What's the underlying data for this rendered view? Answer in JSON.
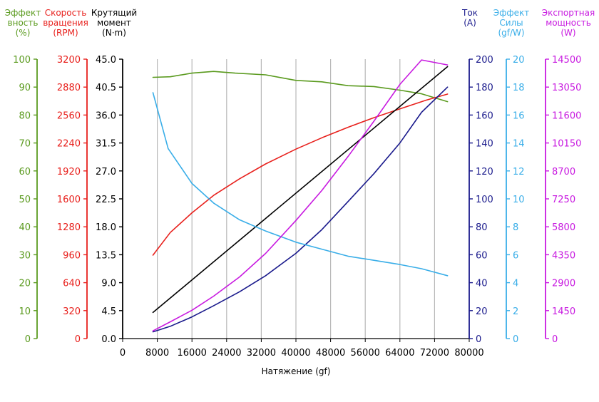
{
  "chart_data": {
    "type": "line",
    "xlabel": "Натяжение (gf)",
    "x_ticks": [
      "0",
      "8000",
      "16000",
      "24000",
      "32000",
      "40000",
      "48000",
      "56000",
      "64000",
      "72000",
      "80000"
    ],
    "xlim": [
      0,
      80000
    ],
    "grid": "vertical",
    "axes": [
      {
        "id": "eff",
        "title": [
          "Эффект",
          "вность",
          "(%)"
        ],
        "color": "#5a9a1e",
        "side": "left",
        "lim": [
          0,
          100
        ],
        "ticks": [
          "0",
          "10",
          "20",
          "30",
          "40",
          "50",
          "60",
          "70",
          "80",
          "90",
          "100"
        ]
      },
      {
        "id": "rpm",
        "title": [
          "Скорость",
          "вращения",
          "(RPM)"
        ],
        "color": "#e8201c",
        "side": "left",
        "lim": [
          0,
          3200
        ],
        "ticks": [
          "0",
          "320",
          "640",
          "960",
          "1280",
          "1600",
          "1920",
          "2240",
          "2560",
          "2880",
          "3200"
        ]
      },
      {
        "id": "torque",
        "title": [
          "Крутящий",
          "момент",
          "(N·m)"
        ],
        "color": "#000000",
        "side": "left",
        "lim": [
          0,
          45
        ],
        "ticks": [
          "0.0",
          "4.5",
          "9.0",
          "13.5",
          "18.0",
          "22.5",
          "27.0",
          "31.5",
          "36.0",
          "40.5",
          "45.0"
        ]
      },
      {
        "id": "current",
        "title": [
          "Ток",
          "(A)"
        ],
        "color": "#1a1a8c",
        "side": "right",
        "lim": [
          0,
          200
        ],
        "ticks": [
          "0",
          "20",
          "40",
          "60",
          "80",
          "100",
          "120",
          "140",
          "160",
          "180",
          "200"
        ]
      },
      {
        "id": "force_eff",
        "title": [
          "Эффект",
          "Силы",
          "(gf/W)"
        ],
        "color": "#3aaee8",
        "side": "right",
        "lim": [
          0,
          20
        ],
        "ticks": [
          "0",
          "2",
          "4",
          "6",
          "8",
          "10",
          "12",
          "14",
          "16",
          "18",
          "20"
        ]
      },
      {
        "id": "power",
        "title": [
          "Экспортная",
          "мощность",
          "(W)"
        ],
        "color": "#c81ae0",
        "side": "right",
        "lim": [
          0,
          14500
        ],
        "ticks": [
          "0",
          "1450",
          "2900",
          "4350",
          "5800",
          "7250",
          "8700",
          "10150",
          "11600",
          "13050",
          "14500"
        ]
      }
    ],
    "series": [
      {
        "axis": "eff",
        "color": "#5a9a1e",
        "x": [
          7000,
          11000,
          16000,
          21000,
          26000,
          33000,
          40000,
          46000,
          52000,
          58000,
          64000,
          69000,
          75000
        ],
        "y": [
          93.5,
          93.7,
          95.0,
          95.6,
          95.0,
          94.4,
          92.4,
          91.9,
          90.5,
          90.2,
          88.9,
          87.6,
          84.8
        ]
      },
      {
        "axis": "rpm",
        "color": "#e8201c",
        "x": [
          7000,
          11000,
          16000,
          21000,
          27000,
          33000,
          40000,
          46000,
          52000,
          58000,
          64000,
          70000,
          75000
        ],
        "y": [
          955,
          1215,
          1440,
          1640,
          1830,
          2000,
          2170,
          2300,
          2420,
          2530,
          2630,
          2730,
          2800
        ]
      },
      {
        "axis": "torque",
        "color": "#000000",
        "x": [
          7000,
          75000
        ],
        "y": [
          4.2,
          43.8
        ]
      },
      {
        "axis": "current",
        "color": "#1a1a8c",
        "x": [
          7000,
          11000,
          16000,
          21000,
          27000,
          33000,
          40000,
          46000,
          52000,
          58000,
          64000,
          69000,
          75000
        ],
        "y": [
          4.8,
          8.8,
          15.5,
          23.5,
          33.5,
          45.0,
          61.0,
          78.0,
          98.0,
          118.0,
          140.0,
          162.0,
          180.0
        ]
      },
      {
        "axis": "force_eff",
        "color": "#3aaee8",
        "x": [
          7000,
          10500,
          16000,
          21000,
          27000,
          33000,
          40000,
          46000,
          52000,
          58000,
          64000,
          69000,
          75000
        ],
        "y": [
          17.6,
          13.6,
          11.1,
          9.7,
          8.5,
          7.7,
          6.9,
          6.4,
          5.9,
          5.6,
          5.3,
          5.0,
          4.5
        ]
      },
      {
        "axis": "power",
        "color": "#c81ae0",
        "x": [
          7000,
          11000,
          16000,
          21000,
          27000,
          33000,
          40000,
          46000,
          52000,
          58000,
          64000,
          69000,
          75000
        ],
        "y": [
          400,
          870,
          1470,
          2200,
          3200,
          4420,
          6130,
          7690,
          9440,
          11280,
          13190,
          14460,
          14200
        ]
      }
    ]
  }
}
